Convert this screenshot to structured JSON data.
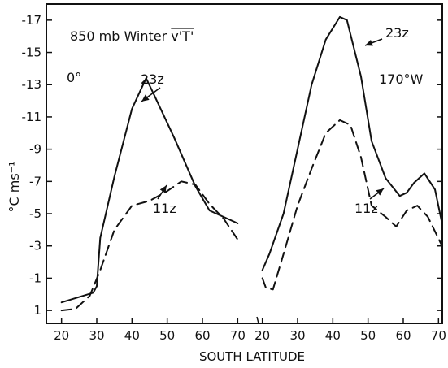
{
  "chart_data": [
    {
      "type": "line",
      "panel": "0°",
      "x_ticks": [
        20,
        30,
        40,
        50,
        60,
        70
      ],
      "series": [
        {
          "name": "23z",
          "style": "solid",
          "x": [
            20,
            29,
            30,
            31,
            35,
            40,
            44,
            46,
            52,
            58,
            62,
            70
          ],
          "y": [
            0.5,
            -0.1,
            -0.5,
            -3.5,
            -7.3,
            -11.5,
            -13.4,
            -12.5,
            -9.7,
            -6.7,
            -5.2,
            -4.4
          ]
        },
        {
          "name": "11z",
          "style": "dashed",
          "x": [
            20,
            24,
            28,
            31,
            35,
            40,
            45,
            50,
            54,
            58,
            62,
            66,
            70
          ],
          "y": [
            1.0,
            0.9,
            0.1,
            -1.5,
            -4.0,
            -5.5,
            -5.8,
            -6.4,
            -7.0,
            -6.8,
            -5.6,
            -4.7,
            -3.4
          ]
        }
      ]
    },
    {
      "type": "line",
      "panel": "170°W",
      "x_ticks": [
        20,
        30,
        40,
        50,
        60,
        70
      ],
      "series": [
        {
          "name": "23z",
          "style": "solid",
          "x": [
            20,
            22,
            26,
            30,
            34,
            38,
            42,
            44,
            48,
            51,
            55,
            59,
            61,
            63,
            66,
            69,
            71
          ],
          "y": [
            -1.5,
            -2.5,
            -5.0,
            -9.0,
            -13.0,
            -15.8,
            -17.2,
            -17.0,
            -13.5,
            -9.5,
            -7.2,
            -6.1,
            -6.3,
            -6.9,
            -7.5,
            -6.5,
            -4.4
          ]
        },
        {
          "name": "11z",
          "style": "dashed",
          "x": [
            20,
            21,
            23,
            26,
            30,
            34,
            38,
            42,
            45,
            48,
            51,
            55,
            58,
            61,
            64,
            67,
            71
          ],
          "y": [
            -1.0,
            -0.4,
            -0.3,
            -2.5,
            -5.5,
            -7.8,
            -10.0,
            -10.8,
            -10.5,
            -8.5,
            -5.5,
            -4.8,
            -4.2,
            -5.2,
            -5.5,
            -4.8,
            -3.0
          ]
        }
      ]
    }
  ],
  "title": "850 mb Winter v'T'",
  "title_prefix": "850 mb Winter ",
  "title_overline_term": "v'T'",
  "panel_labels": [
    "0°",
    "170°W"
  ],
  "series_labels": {
    "p1_23": "23z",
    "p1_11": "11z",
    "p2_23": "23z",
    "p2_11": "11z"
  },
  "y_axis": {
    "label": "°C ms⁻¹",
    "ticks": [
      1,
      -1,
      -3,
      -5,
      -7,
      -9,
      -11,
      -13,
      -15,
      -17
    ],
    "range": [
      1.8,
      -18
    ]
  },
  "x_axis": {
    "label": "SOUTH LATITUDE",
    "panel_range": [
      18,
      72
    ]
  }
}
